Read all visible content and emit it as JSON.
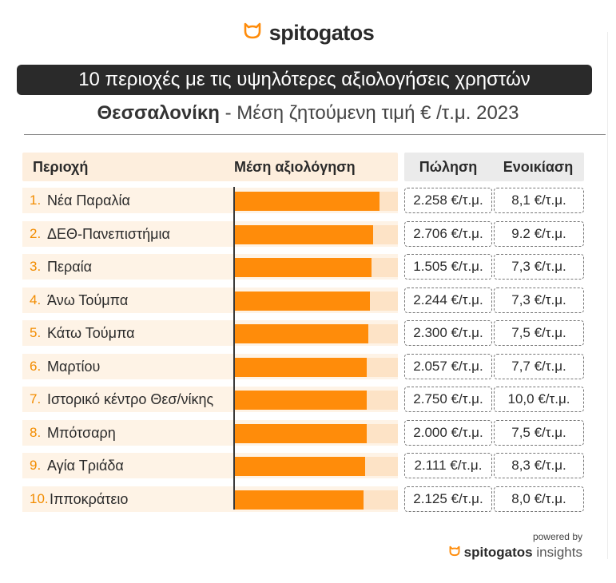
{
  "brand": {
    "logo_text": "spitogatos",
    "accent": "#ff8c0a"
  },
  "title": "10 περιοχές με τις υψηλότερες αξιολογήσεις χρηστών",
  "subtitle": {
    "city": "Θεσσαλονίκη",
    "rest": " - Μέση ζητούμενη τιμή € /τ.μ. 2023"
  },
  "headers": {
    "area": "Περιοχή",
    "rating": "Μέση αξιολόγηση",
    "sale": "Πώληση",
    "rent": "Ενοικίαση"
  },
  "footer": {
    "powered": "powered by",
    "brand": "spitogatos",
    "insights": " insights"
  },
  "chart_data": {
    "type": "bar",
    "orientation": "horizontal",
    "title": "10 περιοχές με τις υψηλότερες αξιολογήσεις χρηστών",
    "ylabel": "Περιοχή",
    "xlabel": "Μέση αξιολόγηση",
    "xlim": [
      0,
      1
    ],
    "categories": [
      "Νέα Παραλία",
      "ΔΕΘ-Πανεπιστήμια",
      "Περαία",
      "Άνω Τούμπα",
      "Κάτω Τούμπα",
      "Μαρτίου",
      "Ιστορικό κέντρο Θεσ/νίκης",
      "Μπότσαρη",
      "Αγία Τριάδα",
      "Ιπποκράτειο"
    ],
    "numbers": [
      "1.",
      "2.",
      "3.",
      "4.",
      "5.",
      "6.",
      "7.",
      "8.",
      "9.",
      "10."
    ],
    "values": [
      0.89,
      0.85,
      0.84,
      0.83,
      0.82,
      0.81,
      0.81,
      0.81,
      0.8,
      0.79
    ],
    "sale": [
      "2.258 €/τ.μ.",
      "2.706 €/τ.μ.",
      "1.505 €/τ.μ.",
      "2.244 €/τ.μ.",
      "2.300 €/τ.μ.",
      "2.057 €/τ.μ.",
      "2.750 €/τ.μ.",
      "2.000 €/τ.μ.",
      "2.111 €/τ.μ.",
      "2.125 €/τ.μ."
    ],
    "rent": [
      "8,1 €/τ.μ.",
      "9.2 €/τ.μ.",
      "7,3 €/τ.μ.",
      "7,3 €/τ.μ.",
      "7,5 €/τ.μ.",
      "7,7 €/τ.μ.",
      "10,0 €/τ.μ.",
      "7,5 €/τ.μ.",
      "8,3 €/τ.μ.",
      "8,0 €/τ.μ."
    ],
    "colors": {
      "bar": "#ff8c0a",
      "track": "#fde3c6",
      "rank": "#f28c00"
    }
  }
}
